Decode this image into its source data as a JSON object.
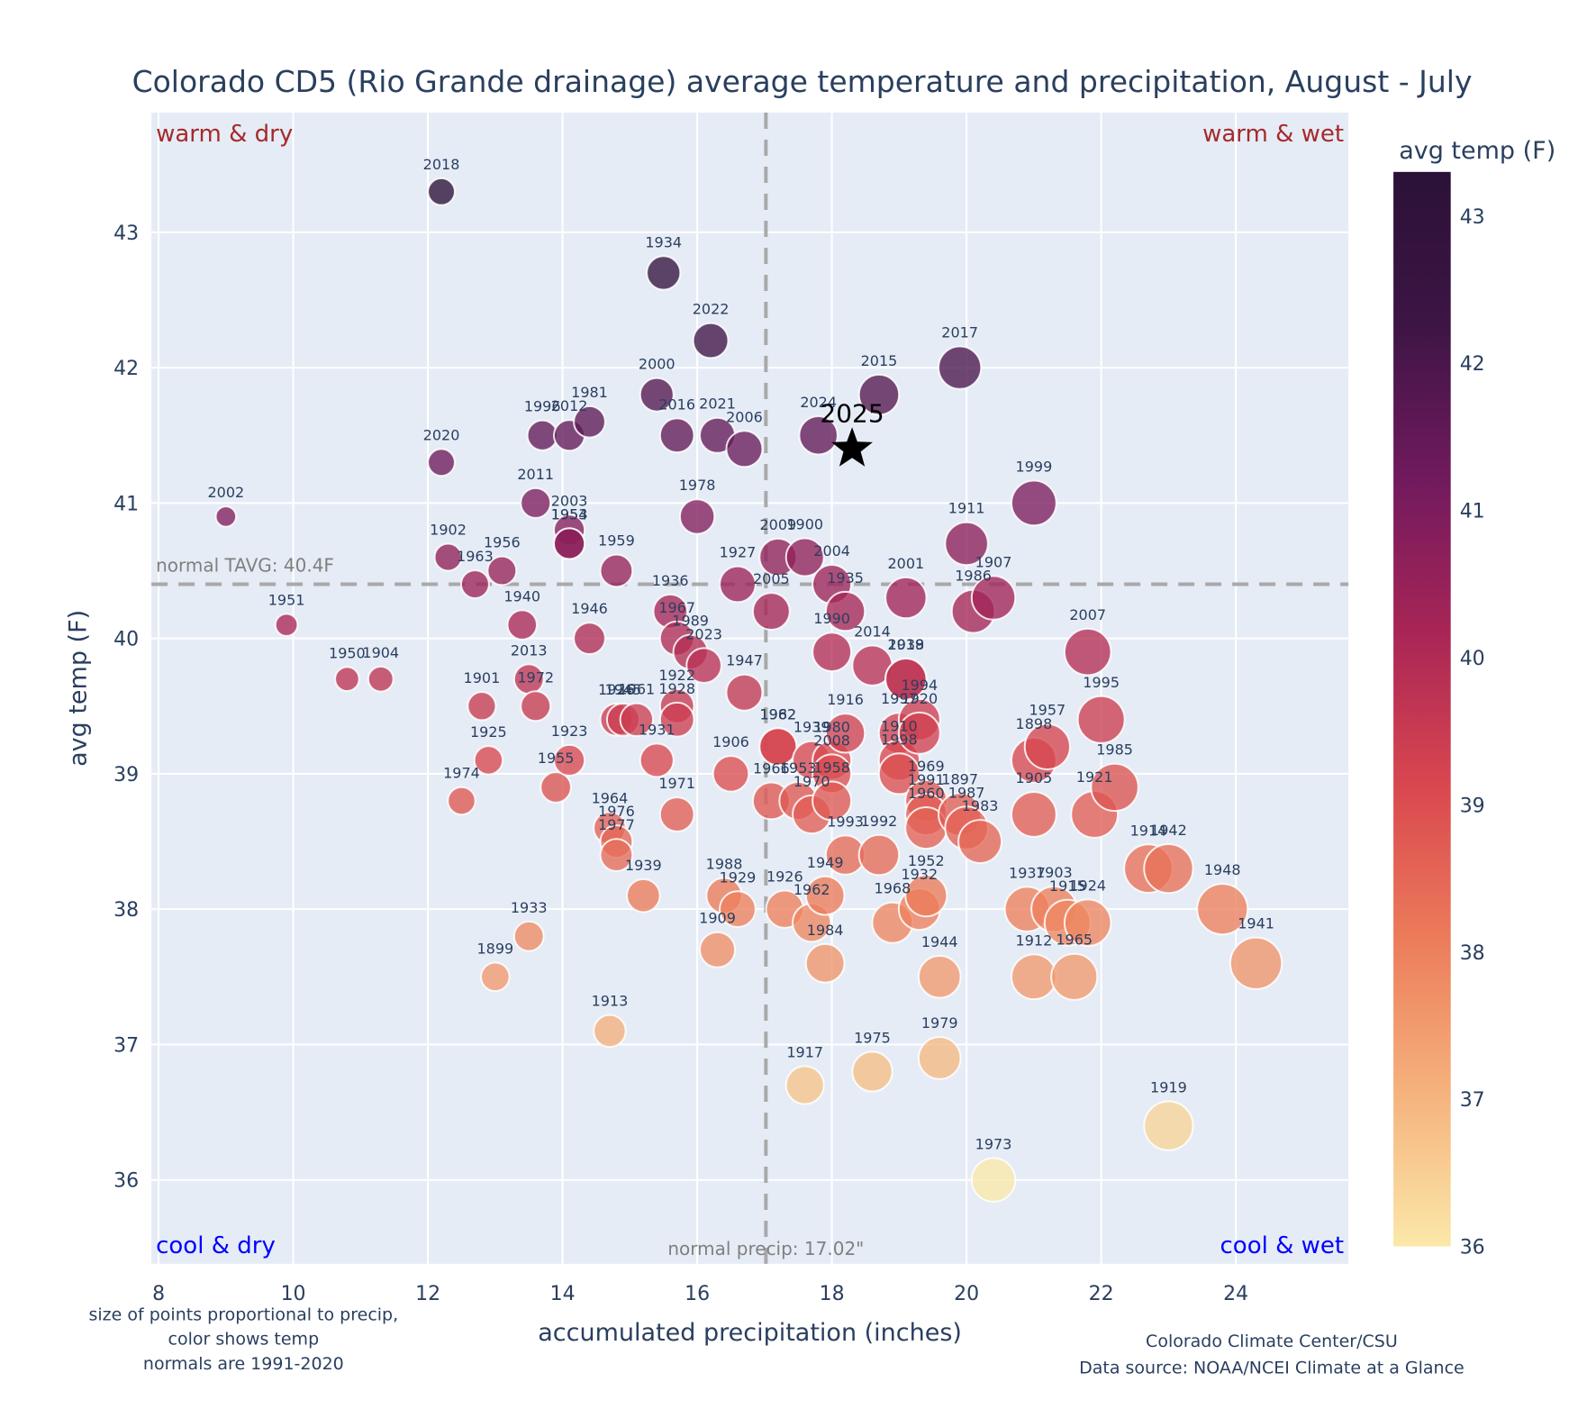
{
  "chart_data": {
    "type": "scatter",
    "title": "Colorado CD5 (Rio Grande drainage) average temperature and precipitation, August - July",
    "xlabel": "accumulated precipitation (inches)",
    "ylabel": "avg temp (F)",
    "xlim": [
      7.9,
      25.7
    ],
    "ylim": [
      35.5,
      43.85
    ],
    "xticks": [
      8,
      10,
      12,
      14,
      16,
      18,
      20,
      22,
      24
    ],
    "yticks": [
      36,
      37,
      38,
      39,
      40,
      41,
      42,
      43
    ],
    "grid": true,
    "colorbar": {
      "title": "avg temp (F)",
      "range": [
        36,
        43.3
      ],
      "ticks": [
        36,
        37,
        38,
        39,
        40,
        41,
        42,
        43
      ],
      "colorscale": [
        "#fbe8a9",
        "#f5b27d",
        "#ec7c5a",
        "#d9474f",
        "#a82556",
        "#711a5e",
        "#3d1545",
        "#2b1137"
      ]
    },
    "normals": {
      "precip": 17.02,
      "temp": 40.4,
      "precip_label": "normal precip: 17.02\"",
      "temp_label": "normal TAVG: 40.4F"
    },
    "quadrants": {
      "top_left": "warm & dry",
      "top_right": "warm & wet",
      "bottom_left": "cool & dry",
      "bottom_right": "cool & wet"
    },
    "highlight": {
      "label": "2025",
      "x": 18.3,
      "y": 41.4,
      "marker": "star"
    },
    "points": [
      {
        "year": "2018",
        "x": 12.2,
        "y": 43.3
      },
      {
        "year": "1934",
        "x": 15.5,
        "y": 42.7
      },
      {
        "year": "2022",
        "x": 16.2,
        "y": 42.2
      },
      {
        "year": "2017",
        "x": 19.9,
        "y": 42.0
      },
      {
        "year": "2000",
        "x": 15.4,
        "y": 41.8
      },
      {
        "year": "2015",
        "x": 18.7,
        "y": 41.8
      },
      {
        "year": "1981",
        "x": 14.4,
        "y": 41.6
      },
      {
        "year": "1996",
        "x": 13.7,
        "y": 41.5
      },
      {
        "year": "2012",
        "x": 14.1,
        "y": 41.5
      },
      {
        "year": "2016",
        "x": 15.7,
        "y": 41.5
      },
      {
        "year": "2021",
        "x": 16.3,
        "y": 41.5
      },
      {
        "year": "2024",
        "x": 17.8,
        "y": 41.5
      },
      {
        "year": "2006",
        "x": 16.7,
        "y": 41.4
      },
      {
        "year": "2020",
        "x": 12.2,
        "y": 41.3
      },
      {
        "year": "2011",
        "x": 13.6,
        "y": 41.0
      },
      {
        "year": "1999",
        "x": 21.0,
        "y": 41.0
      },
      {
        "year": "2002",
        "x": 9.0,
        "y": 40.9
      },
      {
        "year": "1978",
        "x": 16.0,
        "y": 40.9
      },
      {
        "year": "2003",
        "x": 14.1,
        "y": 40.8
      },
      {
        "year": "1954",
        "x": 14.1,
        "y": 40.7
      },
      {
        "year": "1953",
        "x": 14.1,
        "y": 40.7
      },
      {
        "year": "1911",
        "x": 20.0,
        "y": 40.7
      },
      {
        "year": "1902",
        "x": 12.3,
        "y": 40.6
      },
      {
        "year": "2009",
        "x": 17.2,
        "y": 40.6
      },
      {
        "year": "1900",
        "x": 17.6,
        "y": 40.6
      },
      {
        "year": "1959",
        "x": 14.8,
        "y": 40.5
      },
      {
        "year": "1956",
        "x": 13.1,
        "y": 40.5
      },
      {
        "year": "1963",
        "x": 12.7,
        "y": 40.4
      },
      {
        "year": "1927",
        "x": 16.6,
        "y": 40.4
      },
      {
        "year": "2004",
        "x": 18.0,
        "y": 40.4
      },
      {
        "year": "2001",
        "x": 19.1,
        "y": 40.3
      },
      {
        "year": "1907",
        "x": 20.4,
        "y": 40.3
      },
      {
        "year": "1936",
        "x": 15.6,
        "y": 40.2
      },
      {
        "year": "2005",
        "x": 17.1,
        "y": 40.2
      },
      {
        "year": "1935",
        "x": 18.2,
        "y": 40.2
      },
      {
        "year": "1986",
        "x": 20.1,
        "y": 40.2
      },
      {
        "year": "1951",
        "x": 9.9,
        "y": 40.1
      },
      {
        "year": "1940",
        "x": 13.4,
        "y": 40.1
      },
      {
        "year": "1946",
        "x": 14.4,
        "y": 40.0
      },
      {
        "year": "1967",
        "x": 15.7,
        "y": 40.0
      },
      {
        "year": "1989",
        "x": 15.9,
        "y": 39.9
      },
      {
        "year": "1990",
        "x": 18.0,
        "y": 39.9
      },
      {
        "year": "2007",
        "x": 21.8,
        "y": 39.9
      },
      {
        "year": "2023",
        "x": 16.1,
        "y": 39.8
      },
      {
        "year": "2014",
        "x": 18.6,
        "y": 39.8
      },
      {
        "year": "2019",
        "x": 19.1,
        "y": 39.7
      },
      {
        "year": "1938",
        "x": 19.1,
        "y": 39.7
      },
      {
        "year": "1950",
        "x": 10.8,
        "y": 39.7
      },
      {
        "year": "1904",
        "x": 11.3,
        "y": 39.7
      },
      {
        "year": "2013",
        "x": 13.5,
        "y": 39.7
      },
      {
        "year": "1947",
        "x": 16.7,
        "y": 39.6
      },
      {
        "year": "1901",
        "x": 12.8,
        "y": 39.5
      },
      {
        "year": "1972",
        "x": 13.6,
        "y": 39.5
      },
      {
        "year": "1922",
        "x": 15.7,
        "y": 39.5
      },
      {
        "year": "1994",
        "x": 19.3,
        "y": 39.4
      },
      {
        "year": "1926",
        "x": 14.8,
        "y": 39.4
      },
      {
        "year": "1945",
        "x": 14.9,
        "y": 39.4
      },
      {
        "year": "1961",
        "x": 15.1,
        "y": 39.4
      },
      {
        "year": "1928",
        "x": 15.7,
        "y": 39.4
      },
      {
        "year": "1995",
        "x": 22.0,
        "y": 39.4
      },
      {
        "year": "1916",
        "x": 18.2,
        "y": 39.3
      },
      {
        "year": "1997",
        "x": 19.0,
        "y": 39.3
      },
      {
        "year": "1920",
        "x": 19.3,
        "y": 39.3
      },
      {
        "year": "1957",
        "x": 21.2,
        "y": 39.2
      },
      {
        "year": "1982",
        "x": 17.2,
        "y": 39.2
      },
      {
        "year": "1962",
        "x": 17.2,
        "y": 39.2
      },
      {
        "year": "1939",
        "x": 17.7,
        "y": 39.1
      },
      {
        "year": "1980",
        "x": 18.0,
        "y": 39.1
      },
      {
        "year": "1925",
        "x": 12.9,
        "y": 39.1
      },
      {
        "year": "1923",
        "x": 14.1,
        "y": 39.1
      },
      {
        "year": "1931",
        "x": 15.4,
        "y": 39.1
      },
      {
        "year": "1910",
        "x": 19.0,
        "y": 39.1
      },
      {
        "year": "1898",
        "x": 21.0,
        "y": 39.1
      },
      {
        "year": "1906",
        "x": 16.5,
        "y": 39.0
      },
      {
        "year": "2008",
        "x": 18.0,
        "y": 39.0
      },
      {
        "year": "1998",
        "x": 19.0,
        "y": 39.0
      },
      {
        "year": "1985",
        "x": 22.2,
        "y": 38.9
      },
      {
        "year": "1955",
        "x": 13.9,
        "y": 38.9
      },
      {
        "year": "1966",
        "x": 17.1,
        "y": 38.8
      },
      {
        "year": "1953b",
        "x": 17.5,
        "y": 38.8
      },
      {
        "year": "1958",
        "x": 18.0,
        "y": 38.8
      },
      {
        "year": "1969",
        "x": 19.4,
        "y": 38.8
      },
      {
        "year": "1974",
        "x": 12.5,
        "y": 38.8
      },
      {
        "year": "1971",
        "x": 15.7,
        "y": 38.7
      },
      {
        "year": "1970",
        "x": 17.7,
        "y": 38.7
      },
      {
        "year": "1991",
        "x": 19.4,
        "y": 38.7
      },
      {
        "year": "1897",
        "x": 19.9,
        "y": 38.7
      },
      {
        "year": "1905",
        "x": 21.0,
        "y": 38.7
      },
      {
        "year": "1921",
        "x": 21.9,
        "y": 38.7
      },
      {
        "year": "1960",
        "x": 19.4,
        "y": 38.6
      },
      {
        "year": "1987",
        "x": 20.0,
        "y": 38.6
      },
      {
        "year": "1964",
        "x": 14.7,
        "y": 38.6
      },
      {
        "year": "1983",
        "x": 20.2,
        "y": 38.5
      },
      {
        "year": "1976",
        "x": 14.8,
        "y": 38.5
      },
      {
        "year": "1993",
        "x": 18.2,
        "y": 38.4
      },
      {
        "year": "1992",
        "x": 18.7,
        "y": 38.4
      },
      {
        "year": "1977",
        "x": 14.8,
        "y": 38.4
      },
      {
        "year": "1914",
        "x": 22.7,
        "y": 38.3
      },
      {
        "year": "1942",
        "x": 23.0,
        "y": 38.3
      },
      {
        "year": "1952",
        "x": 19.4,
        "y": 38.1
      },
      {
        "year": "1949",
        "x": 17.9,
        "y": 38.1
      },
      {
        "year": "1988",
        "x": 16.4,
        "y": 38.1
      },
      {
        "year": "1939b",
        "x": 15.2,
        "y": 38.1
      },
      {
        "year": "1929",
        "x": 16.6,
        "y": 38.0
      },
      {
        "year": "1926b",
        "x": 17.3,
        "y": 38.0
      },
      {
        "year": "1932",
        "x": 19.3,
        "y": 38.0
      },
      {
        "year": "1937",
        "x": 20.9,
        "y": 38.0
      },
      {
        "year": "1903",
        "x": 21.3,
        "y": 38.0
      },
      {
        "year": "1948",
        "x": 23.8,
        "y": 38.0
      },
      {
        "year": "1962b",
        "x": 17.7,
        "y": 37.9
      },
      {
        "year": "1968",
        "x": 18.9,
        "y": 37.9
      },
      {
        "year": "1915",
        "x": 21.5,
        "y": 37.9
      },
      {
        "year": "1924",
        "x": 21.8,
        "y": 37.9
      },
      {
        "year": "1933",
        "x": 13.5,
        "y": 37.8
      },
      {
        "year": "1909",
        "x": 16.3,
        "y": 37.7
      },
      {
        "year": "1984",
        "x": 17.9,
        "y": 37.6
      },
      {
        "year": "1941",
        "x": 24.3,
        "y": 37.6
      },
      {
        "year": "1899",
        "x": 13.0,
        "y": 37.5
      },
      {
        "year": "1944",
        "x": 19.6,
        "y": 37.5
      },
      {
        "year": "1912",
        "x": 21.0,
        "y": 37.5
      },
      {
        "year": "1965",
        "x": 21.6,
        "y": 37.5
      },
      {
        "year": "1913",
        "x": 14.7,
        "y": 37.1
      },
      {
        "year": "1979",
        "x": 19.6,
        "y": 36.9
      },
      {
        "year": "1975",
        "x": 18.6,
        "y": 36.8
      },
      {
        "year": "1917",
        "x": 17.6,
        "y": 36.7
      },
      {
        "year": "1919",
        "x": 23.0,
        "y": 36.4
      },
      {
        "year": "1973",
        "x": 20.4,
        "y": 36.0
      }
    ]
  },
  "labels": {
    "title": "Colorado CD5 (Rio Grande drainage) average temperature and precipitation, August - July",
    "xlabel": "accumulated precipitation (inches)",
    "ylabel": "avg temp (F)",
    "colorbar_title": "avg temp (F)",
    "note_left": [
      "size of points proportional to precip,",
      "color shows temp",
      "normals are 1991-2020"
    ],
    "note_right": [
      "Colorado Climate Center/CSU",
      "Data source: NOAA/NCEI Climate at a Glance"
    ]
  }
}
